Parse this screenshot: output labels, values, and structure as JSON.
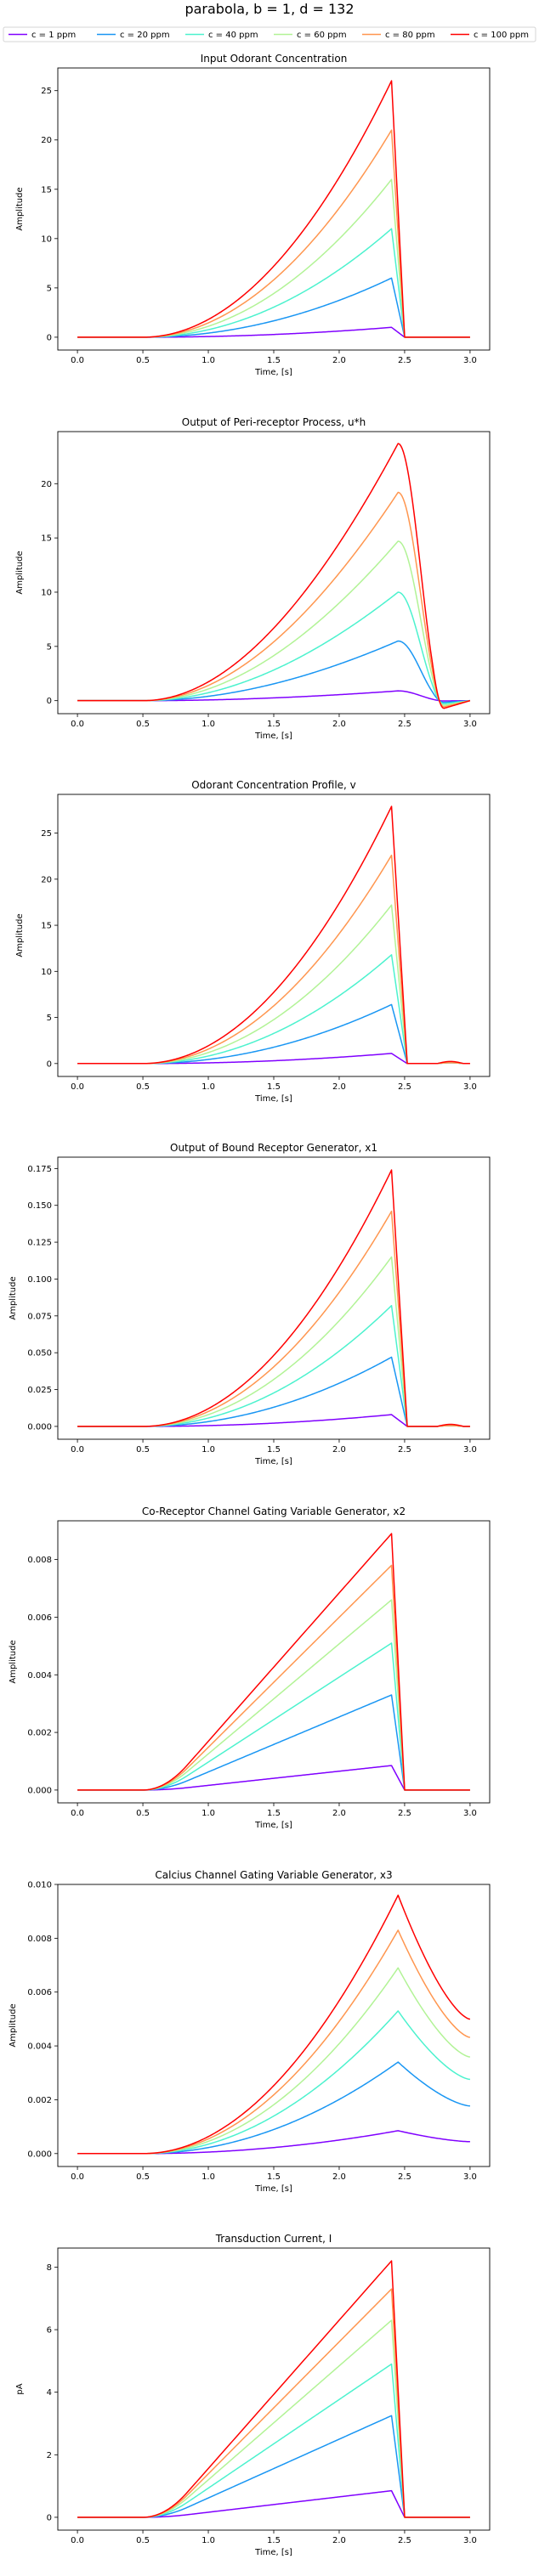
{
  "figure": {
    "suptitle": "parabola, b = 1, d = 132"
  },
  "legend": {
    "location": "top",
    "entries": [
      "c = 1 ppm",
      "c = 20 ppm",
      "c = 40 ppm",
      "c = 60 ppm",
      "c = 80 ppm",
      "c = 100 ppm"
    ]
  },
  "series_colors": [
    "#8000ff",
    "#1996f3",
    "#4cf2ce",
    "#b2f396",
    "#ff964f",
    "#ff0000"
  ],
  "x_axis": {
    "label": "Time, [s]",
    "ticks": [
      "0.0",
      "0.5",
      "1.0",
      "1.5",
      "2.0",
      "2.5",
      "3.0"
    ],
    "range": [
      -0.15,
      3.15
    ]
  },
  "chart_data": [
    {
      "type": "line",
      "title": "Input Odorant Concentration",
      "xlabel": "Time, [s]",
      "ylabel": "Amplitude",
      "ylim": [
        -1.3,
        27.3
      ],
      "yticks": [
        "0",
        "5",
        "10",
        "15",
        "20",
        "25"
      ],
      "grid": false,
      "curve": "parabola",
      "peaks": [
        1.0,
        6.0,
        11.0,
        16.0,
        21.0,
        26.0
      ],
      "onset": 0.5,
      "peak_time": 2.4,
      "decay_end": 2.5,
      "undershoot": 0,
      "tail": 0,
      "ripple": 0
    },
    {
      "type": "line",
      "title": "Output of Peri-receptor Process, u*h",
      "xlabel": "Time, [s]",
      "ylabel": "Amplitude",
      "ylim": [
        -1.2,
        24.8
      ],
      "yticks": [
        "0",
        "5",
        "10",
        "15",
        "20"
      ],
      "grid": false,
      "curve": "smooth",
      "peaks": [
        0.9,
        5.5,
        10.0,
        14.7,
        19.2,
        23.7
      ],
      "onset": 0.5,
      "peak_time": 2.45,
      "decay_end": 2.8,
      "undershoot": 0.03,
      "tail": 0,
      "ripple": 0
    },
    {
      "type": "line",
      "title": "Odorant Concentration Profile, v",
      "xlabel": "Time, [s]",
      "ylabel": "Amplitude",
      "ylim": [
        -1.4,
        29.2
      ],
      "yticks": [
        "0",
        "5",
        "10",
        "15",
        "20",
        "25"
      ],
      "grid": false,
      "curve": "parabola",
      "peaks": [
        1.1,
        6.4,
        11.8,
        17.2,
        22.6,
        27.9
      ],
      "onset": 0.5,
      "peak_time": 2.4,
      "decay_end": 2.52,
      "undershoot": 0,
      "tail": 0,
      "ripple": 0.008
    },
    {
      "type": "line",
      "title": "Output of Bound Receptor Generator, x1",
      "xlabel": "Time, [s]",
      "ylabel": "Amplitude",
      "ylim": [
        -0.0087,
        0.1827
      ],
      "yticks": [
        "0.000",
        "0.025",
        "0.050",
        "0.075",
        "0.100",
        "0.125",
        "0.150",
        "0.175"
      ],
      "grid": false,
      "curve": "parabola",
      "peaks": [
        0.008,
        0.047,
        0.082,
        0.115,
        0.146,
        0.174
      ],
      "onset": 0.5,
      "peak_time": 2.4,
      "decay_end": 2.52,
      "undershoot": 0,
      "tail": 0,
      "ripple": 0.008
    },
    {
      "type": "line",
      "title": "Co-Receptor Channel Gating Variable Generator, x2",
      "xlabel": "Time, [s]",
      "ylabel": "Amplitude",
      "ylim": [
        -0.000445,
        0.009345
      ],
      "yticks": [
        "0.000",
        "0.002",
        "0.004",
        "0.006",
        "0.008"
      ],
      "grid": false,
      "curve": "ramp",
      "peaks": [
        0.00085,
        0.0033,
        0.0051,
        0.0066,
        0.0078,
        0.0089
      ],
      "onset": 0.5,
      "peak_time": 2.4,
      "decay_end": 2.5,
      "undershoot": 0,
      "tail": 0,
      "ripple": 0
    },
    {
      "type": "line",
      "title": "Calcius Channel Gating Variable Generator, x3",
      "xlabel": "Time, [s]",
      "ylabel": "Amplitude",
      "ylim": [
        -0.00048,
        0.01
      ],
      "yticks": [
        "0.000",
        "0.002",
        "0.004",
        "0.006",
        "0.008",
        "0.010"
      ],
      "grid": false,
      "curve": "parabola",
      "peaks": [
        0.00085,
        0.0034,
        0.0053,
        0.0069,
        0.0083,
        0.0096
      ],
      "onset": 0.5,
      "peak_time": 2.45,
      "decay_end": 3.0,
      "undershoot": 0,
      "tail": 0.52,
      "ripple": 0
    },
    {
      "type": "line",
      "title": "Transduction Current, I",
      "xlabel": "Time, [s]",
      "ylabel": "pA",
      "ylim": [
        -0.41,
        8.61
      ],
      "yticks": [
        "0",
        "2",
        "4",
        "6",
        "8"
      ],
      "grid": false,
      "curve": "ramp",
      "peaks": [
        0.85,
        3.25,
        4.9,
        6.3,
        7.3,
        8.2
      ],
      "onset": 0.5,
      "peak_time": 2.4,
      "decay_end": 2.5,
      "undershoot": 0,
      "tail": 0,
      "ripple": 0
    }
  ]
}
